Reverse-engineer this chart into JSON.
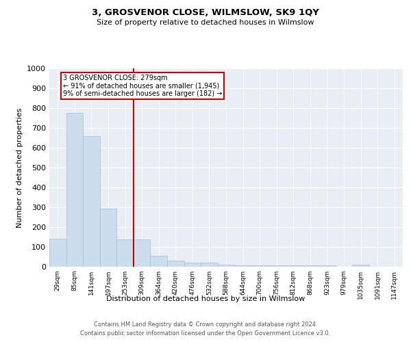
{
  "title": "3, GROSVENOR CLOSE, WILMSLOW, SK9 1QY",
  "subtitle": "Size of property relative to detached houses in Wilmslow",
  "xlabel": "Distribution of detached houses by size in Wilmslow",
  "ylabel": "Number of detached properties",
  "bar_labels": [
    "29sqm",
    "85sqm",
    "141sqm",
    "197sqm",
    "253sqm",
    "309sqm",
    "364sqm",
    "420sqm",
    "476sqm",
    "532sqm",
    "588sqm",
    "644sqm",
    "700sqm",
    "756sqm",
    "812sqm",
    "868sqm",
    "923sqm",
    "979sqm",
    "1035sqm",
    "1091sqm",
    "1147sqm"
  ],
  "bar_values": [
    140,
    775,
    660,
    293,
    137,
    137,
    55,
    30,
    20,
    20,
    10,
    7,
    7,
    7,
    7,
    7,
    7,
    0,
    10,
    0,
    0
  ],
  "bar_color": "#ccdded",
  "bar_edgecolor": "#aabbcc",
  "vline_x": 4.5,
  "vline_color": "#cc0000",
  "annotation_title": "3 GROSVENOR CLOSE: 279sqm",
  "annotation_line1": "← 91% of detached houses are smaller (1,945)",
  "annotation_line2": "9% of semi-detached houses are larger (182) →",
  "annotation_box_color": "#cc0000",
  "ylim": [
    0,
    1000
  ],
  "yticks": [
    0,
    100,
    200,
    300,
    400,
    500,
    600,
    700,
    800,
    900,
    1000
  ],
  "footer1": "Contains HM Land Registry data © Crown copyright and database right 2024.",
  "footer2": "Contains public sector information licensed under the Open Government Licence v3.0.",
  "plot_bg_color": "#e8eef4",
  "fig_bg_color": "#ffffff"
}
